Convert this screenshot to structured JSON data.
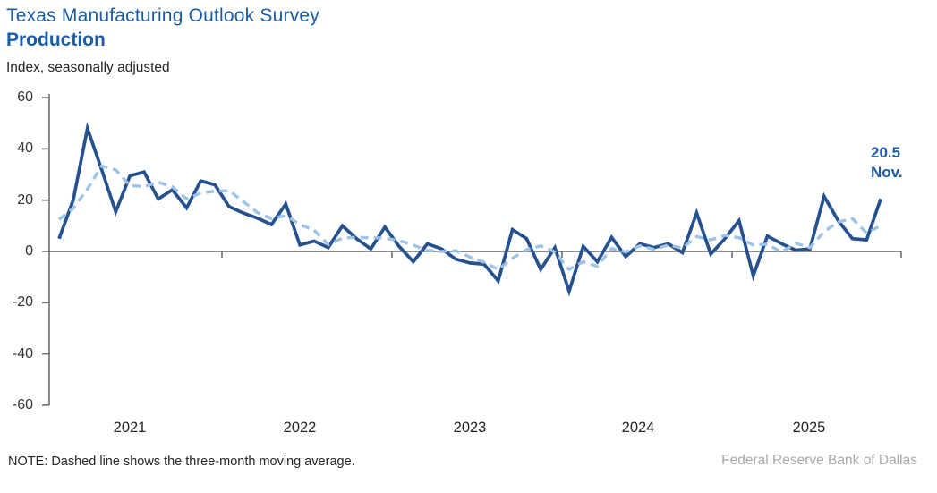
{
  "header": {
    "title": "Texas Manufacturing Outlook Survey",
    "subtitle": "Production",
    "unit_label": "Index, seasonally adjusted"
  },
  "chart_data": {
    "type": "line",
    "title": "Texas Manufacturing Outlook Survey — Production",
    "ylabel": "Index, seasonally adjusted",
    "ylim": [
      -60,
      60
    ],
    "grid": false,
    "legend_position": "none",
    "y_tick_labels": [
      "60",
      "40",
      "20",
      "0",
      "-20",
      "-40",
      "-60"
    ],
    "x_tick_labels": [
      "2021",
      "2022",
      "2023",
      "2024",
      "2025"
    ],
    "x_start": "2021-01",
    "x_end": "2025-11",
    "frequency": "monthly",
    "months": [
      "2021-01",
      "2021-02",
      "2021-03",
      "2021-04",
      "2021-05",
      "2021-06",
      "2021-07",
      "2021-08",
      "2021-09",
      "2021-10",
      "2021-11",
      "2021-12",
      "2022-01",
      "2022-02",
      "2022-03",
      "2022-04",
      "2022-05",
      "2022-06",
      "2022-07",
      "2022-08",
      "2022-09",
      "2022-10",
      "2022-11",
      "2022-12",
      "2023-01",
      "2023-02",
      "2023-03",
      "2023-04",
      "2023-05",
      "2023-06",
      "2023-07",
      "2023-08",
      "2023-09",
      "2023-10",
      "2023-11",
      "2023-12",
      "2024-01",
      "2024-02",
      "2024-03",
      "2024-04",
      "2024-05",
      "2024-06",
      "2024-07",
      "2024-08",
      "2024-09",
      "2024-10",
      "2024-11",
      "2024-12",
      "2025-01",
      "2025-02",
      "2025-03",
      "2025-04",
      "2025-05",
      "2025-06",
      "2025-07",
      "2025-08",
      "2025-09",
      "2025-10",
      "2025-11"
    ],
    "series": [
      {
        "name": "Production index",
        "style": "solid",
        "color": "#25518f",
        "values": [
          5,
          20,
          48,
          32,
          15.5,
          29.5,
          31,
          20.5,
          24,
          17,
          27.5,
          26,
          17.5,
          15,
          13,
          10.5,
          18.5,
          2.5,
          4,
          1.5,
          10,
          5,
          1,
          9.5,
          2,
          -4,
          3,
          1,
          -3,
          -4.5,
          -5,
          -11.5,
          8.5,
          5,
          -7,
          1.5,
          -15.5,
          2,
          -4,
          5.5,
          -2,
          3,
          1.5,
          3,
          -0.5,
          15,
          -1,
          5,
          12,
          -9.5,
          6,
          3,
          0.5,
          1,
          21.5,
          12,
          5,
          4.5,
          20.5
        ]
      },
      {
        "name": "Three-month moving average",
        "style": "dashed",
        "color": "#9dc3e6",
        "values": [
          12.5,
          16.8,
          24.3,
          33.3,
          31.8,
          25.7,
          25.3,
          27.0,
          25.2,
          20.5,
          22.8,
          23.5,
          23.7,
          19.5,
          15.2,
          12.8,
          14.0,
          10.5,
          8.3,
          2.7,
          5.2,
          5.5,
          5.3,
          5.2,
          4.2,
          2.5,
          0.3,
          0.0,
          0.3,
          -2.2,
          -4.2,
          -7.0,
          -2.7,
          0.7,
          2.2,
          -0.2,
          -7.0,
          -4.0,
          -5.8,
          1.2,
          -0.2,
          2.2,
          0.8,
          2.5,
          1.3,
          5.8,
          4.5,
          6.3,
          5.3,
          2.5,
          2.8,
          -0.2,
          3.2,
          1.5,
          7.7,
          11.5,
          12.8,
          7.2,
          10.0
        ]
      }
    ],
    "annotation": {
      "value": "20.5",
      "label": "Nov."
    }
  },
  "note": "NOTE: Dashed line shows the three-month moving average.",
  "source": "Federal Reserve Bank of Dallas",
  "colors": {
    "title_blue": "#1a5ca8",
    "line_navy": "#25518f",
    "line_light_blue": "#9dc3e6",
    "zero_axis_gray": "#7f7f7f",
    "source_gray": "#a9a9a9"
  }
}
